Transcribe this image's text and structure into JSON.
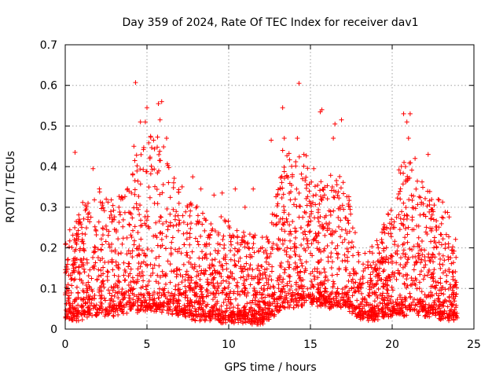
{
  "chart_data": {
    "type": "scatter",
    "title": "Day 359 of 2024, Rate Of TEC Index for receiver dav1",
    "xlabel": "GPS time / hours",
    "ylabel": "ROTI / TECUs",
    "xlim": [
      0,
      25
    ],
    "ylim": [
      0,
      0.7
    ],
    "grid": true,
    "marker": "+",
    "series_color": "#ff0000",
    "x_ticks": [
      0,
      5,
      10,
      15,
      20,
      25
    ],
    "x_tick_labels": [
      "0",
      "5",
      "10",
      "15",
      "20",
      "25"
    ],
    "y_ticks": [
      0,
      0.1,
      0.2,
      0.3,
      0.4,
      0.5,
      0.6,
      0.7
    ],
    "y_tick_labels": [
      "0",
      "0.1",
      "0.2",
      "0.3",
      "0.4",
      "0.5",
      "0.6",
      "0.7"
    ],
    "points_description": "dense cloud of ROTI samples over 0-24 h, baseline about 0.03-0.15 TECU/min",
    "envelope": {
      "hours": [
        0,
        1,
        2,
        3,
        4,
        4.5,
        5,
        5.5,
        6,
        7,
        8,
        9,
        10,
        11,
        12,
        12.5,
        13,
        13.5,
        14,
        15,
        16,
        17,
        17.5,
        18,
        19,
        20,
        20.5,
        21,
        22,
        23,
        24
      ],
      "upper": [
        0.22,
        0.3,
        0.35,
        0.32,
        0.38,
        0.45,
        0.5,
        0.48,
        0.45,
        0.35,
        0.3,
        0.28,
        0.27,
        0.25,
        0.22,
        0.24,
        0.35,
        0.45,
        0.42,
        0.45,
        0.4,
        0.38,
        0.3,
        0.18,
        0.22,
        0.3,
        0.4,
        0.45,
        0.35,
        0.33,
        0.22
      ],
      "lower": [
        0.03,
        0.03,
        0.04,
        0.04,
        0.05,
        0.05,
        0.05,
        0.05,
        0.05,
        0.04,
        0.03,
        0.03,
        0.02,
        0.02,
        0.02,
        0.03,
        0.05,
        0.06,
        0.06,
        0.07,
        0.06,
        0.06,
        0.05,
        0.03,
        0.03,
        0.04,
        0.04,
        0.04,
        0.04,
        0.03,
        0.03
      ]
    },
    "notable_points": [
      {
        "x": 4.3,
        "y": 0.607
      },
      {
        "x": 14.3,
        "y": 0.605
      },
      {
        "x": 5.0,
        "y": 0.545
      },
      {
        "x": 5.9,
        "y": 0.56
      },
      {
        "x": 5.7,
        "y": 0.555
      },
      {
        "x": 13.3,
        "y": 0.545
      },
      {
        "x": 15.7,
        "y": 0.54
      },
      {
        "x": 15.6,
        "y": 0.535
      },
      {
        "x": 20.7,
        "y": 0.53
      },
      {
        "x": 21.1,
        "y": 0.53
      },
      {
        "x": 16.9,
        "y": 0.515
      },
      {
        "x": 16.5,
        "y": 0.505
      },
      {
        "x": 4.6,
        "y": 0.51
      },
      {
        "x": 4.9,
        "y": 0.51
      },
      {
        "x": 5.8,
        "y": 0.515
      },
      {
        "x": 20.9,
        "y": 0.51
      },
      {
        "x": 13.4,
        "y": 0.47
      },
      {
        "x": 14.2,
        "y": 0.47
      },
      {
        "x": 16.4,
        "y": 0.47
      },
      {
        "x": 21.0,
        "y": 0.47
      },
      {
        "x": 4.2,
        "y": 0.45
      },
      {
        "x": 6.2,
        "y": 0.47
      },
      {
        "x": 12.6,
        "y": 0.465
      },
      {
        "x": 0.6,
        "y": 0.435
      },
      {
        "x": 13.3,
        "y": 0.44
      },
      {
        "x": 14.6,
        "y": 0.43
      },
      {
        "x": 21.4,
        "y": 0.42
      },
      {
        "x": 22.2,
        "y": 0.43
      },
      {
        "x": 1.7,
        "y": 0.395
      },
      {
        "x": 7.8,
        "y": 0.375
      },
      {
        "x": 10.4,
        "y": 0.345
      },
      {
        "x": 11.5,
        "y": 0.345
      },
      {
        "x": 8.3,
        "y": 0.345
      },
      {
        "x": 9.6,
        "y": 0.335
      },
      {
        "x": 11.0,
        "y": 0.3
      },
      {
        "x": 9.1,
        "y": 0.33
      }
    ]
  }
}
